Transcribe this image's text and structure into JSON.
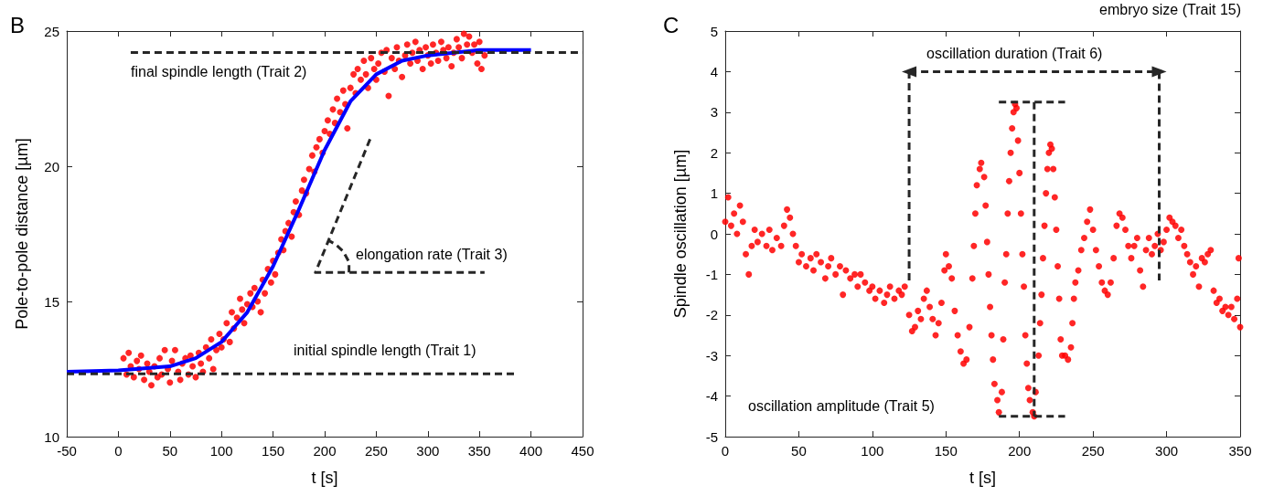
{
  "chart_data": [
    {
      "type": "scatter",
      "title": "B",
      "xlabel": "t [s]",
      "ylabel": "Pole-to-pole distance [µm]",
      "xlim": [
        -50,
        450
      ],
      "xticks": [
        -50,
        0,
        50,
        100,
        150,
        200,
        250,
        300,
        350,
        400,
        450
      ],
      "ylim": [
        10,
        25
      ],
      "yticks": [
        10,
        15,
        20,
        25
      ],
      "annotations": [
        "final spindle length (Trait 2)",
        "elongation rate (Trait 3)",
        "initial spindle length (Trait 1)"
      ],
      "series": [
        {
          "marker": "circle",
          "color": "#ff0000",
          "x": [
            5,
            8,
            10,
            12,
            15,
            18,
            20,
            22,
            25,
            28,
            30,
            32,
            35,
            38,
            40,
            42,
            45,
            48,
            50,
            52,
            55,
            58,
            60,
            62,
            65,
            68,
            70,
            72,
            75,
            78,
            80,
            82,
            85,
            88,
            90,
            92,
            95,
            98,
            100,
            102,
            105,
            108,
            110,
            112,
            115,
            118,
            120,
            122,
            125,
            128,
            130,
            132,
            135,
            138,
            140,
            142,
            145,
            148,
            150,
            152,
            155,
            158,
            160,
            162,
            165,
            168,
            170,
            172,
            175,
            178,
            180,
            182,
            185,
            188,
            190,
            192,
            195,
            198,
            200,
            203,
            205,
            208,
            210,
            212,
            215,
            218,
            220,
            222,
            225,
            228,
            230,
            232,
            235,
            238,
            240,
            242,
            245,
            248,
            250,
            252,
            255,
            258,
            260,
            262,
            265,
            268,
            270,
            272,
            275,
            278,
            280,
            283,
            285,
            288,
            290,
            292,
            295,
            298,
            300,
            303,
            305,
            308,
            310,
            313,
            315,
            318,
            320,
            323,
            325,
            328,
            330,
            333,
            335,
            338,
            340,
            343,
            345,
            348,
            350,
            352,
            355
          ],
          "values": [
            12.9,
            12.3,
            13.1,
            12.6,
            12.2,
            12.8,
            12.5,
            13.0,
            12.1,
            12.7,
            12.4,
            11.9,
            12.6,
            12.2,
            12.9,
            12.3,
            13.2,
            12.5,
            12.0,
            12.8,
            13.2,
            12.4,
            12.1,
            12.7,
            12.9,
            12.3,
            13.0,
            12.6,
            12.2,
            13.1,
            12.7,
            12.4,
            13.3,
            12.9,
            13.6,
            12.5,
            13.2,
            13.8,
            13.3,
            13.6,
            14.2,
            13.5,
            14.6,
            14.0,
            14.4,
            15.1,
            14.7,
            14.2,
            14.9,
            15.3,
            14.8,
            15.5,
            15.0,
            14.6,
            15.8,
            15.3,
            16.2,
            15.7,
            16.5,
            16.0,
            16.8,
            17.3,
            16.9,
            17.6,
            17.9,
            17.4,
            18.3,
            18.7,
            18.2,
            19.1,
            19.5,
            19.0,
            19.9,
            20.4,
            19.8,
            20.7,
            21.0,
            20.5,
            21.3,
            21.7,
            21.2,
            22.1,
            21.6,
            22.5,
            22.0,
            22.8,
            22.3,
            21.4,
            22.9,
            23.4,
            22.7,
            23.6,
            23.2,
            23.9,
            23.4,
            22.9,
            24.0,
            23.6,
            23.2,
            23.8,
            24.2,
            23.5,
            24.3,
            22.6,
            24.0,
            23.6,
            24.4,
            23.9,
            23.3,
            24.1,
            24.5,
            23.8,
            24.2,
            24.6,
            23.9,
            24.3,
            23.6,
            24.4,
            24.1,
            23.8,
            24.5,
            24.2,
            23.9,
            24.6,
            24.3,
            24.0,
            24.4,
            23.7,
            24.2,
            24.7,
            24.4,
            24.0,
            24.9,
            24.5,
            24.8,
            24.2,
            24.5,
            23.8,
            24.6,
            23.6,
            24.1
          ]
        },
        {
          "type": "line",
          "marker": "none",
          "line_style": "solid",
          "color": "#0000ff",
          "x": [
            -50,
            0,
            50,
            75,
            100,
            125,
            150,
            175,
            200,
            225,
            250,
            275,
            300,
            350,
            400
          ],
          "values": [
            12.4,
            12.45,
            12.6,
            12.9,
            13.5,
            14.6,
            16.3,
            18.4,
            20.6,
            22.4,
            23.4,
            23.9,
            24.1,
            24.3,
            24.3
          ]
        },
        {
          "type": "line",
          "marker": "none",
          "line_style": "dashed",
          "color": "#262626",
          "x": [
            12,
            450
          ],
          "values": [
            24.21,
            24.21
          ]
        },
        {
          "type": "line",
          "marker": "none",
          "line_style": "dashed",
          "color": "#262626",
          "x": [
            -50,
            386
          ],
          "values": [
            12.32,
            12.32
          ]
        },
        {
          "type": "line",
          "marker": "none",
          "line_style": "dashed",
          "color": "#262626",
          "x": [
            244,
            191,
            355
          ],
          "values": [
            21.0,
            16.07,
            16.07
          ]
        },
        {
          "type": "line",
          "marker": "none",
          "line_style": "dashed",
          "color": "#262626",
          "x": [
            223.6,
            223.6,
            218,
            211,
            204
          ],
          "values": [
            16.07,
            16.46,
            16.85,
            17.1,
            17.25
          ]
        }
      ]
    },
    {
      "type": "scatter",
      "title": "C",
      "xlabel": "t [s]",
      "ylabel": "Spindle oscillation [µm]",
      "xlim": [
        0,
        350
      ],
      "xticks": [
        0,
        50,
        100,
        150,
        200,
        250,
        300,
        350
      ],
      "ylim": [
        -5,
        5
      ],
      "yticks": [
        -5,
        -4,
        -3,
        -2,
        -1,
        0,
        1,
        2,
        3,
        4,
        5
      ],
      "annotations": [
        "oscillation duration (Trait 6)",
        "oscillation amplitude (Trait 5)",
        "embryo size (Trait 15)"
      ],
      "series": [
        {
          "marker": "circle",
          "color": "#ff0000",
          "x": [
            0,
            2,
            4,
            6,
            8,
            10,
            12,
            14,
            16,
            18,
            20,
            22,
            25,
            28,
            30,
            32,
            35,
            38,
            40,
            42,
            44,
            46,
            48,
            50,
            52,
            55,
            58,
            60,
            62,
            65,
            68,
            70,
            72,
            75,
            78,
            80,
            82,
            85,
            88,
            90,
            92,
            95,
            98,
            100,
            102,
            105,
            108,
            110,
            112,
            115,
            118,
            120,
            122,
            125,
            127,
            129,
            131,
            133,
            135,
            137,
            139,
            141,
            143,
            145,
            147,
            149,
            150,
            152,
            154,
            156,
            158,
            160,
            162,
            164,
            166,
            168,
            169,
            170,
            171,
            173,
            174,
            176,
            177,
            178,
            179,
            180,
            181,
            182,
            183,
            185,
            186,
            188,
            189,
            190,
            191,
            192,
            193,
            194,
            195,
            196,
            197,
            198,
            199,
            200,
            201,
            202,
            203,
            204,
            205,
            206,
            207,
            209,
            210,
            211,
            213,
            214,
            215,
            216,
            217,
            218,
            219,
            220,
            221,
            222,
            223,
            224,
            225,
            226,
            227,
            228,
            229,
            231,
            233,
            235,
            236,
            237,
            238,
            240,
            242,
            244,
            246,
            248,
            250,
            252,
            254,
            256,
            258,
            260,
            262,
            264,
            266,
            268,
            270,
            272,
            274,
            276,
            278,
            280,
            282,
            284,
            286,
            288,
            290,
            292,
            294,
            296,
            298,
            300,
            302,
            304,
            306,
            308,
            310,
            312,
            314,
            316,
            318,
            320,
            322,
            324,
            326,
            328,
            330,
            332,
            334,
            336,
            338,
            340,
            342,
            344,
            346,
            348,
            349,
            350
          ],
          "values": [
            0.3,
            0.9,
            0.2,
            0.5,
            0.0,
            0.7,
            0.3,
            -0.5,
            -1.0,
            -0.3,
            0.1,
            -0.2,
            0.0,
            -0.3,
            0.1,
            -0.4,
            -0.1,
            -0.3,
            0.2,
            0.6,
            0.4,
            0.0,
            -0.3,
            -0.7,
            -0.5,
            -0.8,
            -0.6,
            -0.9,
            -0.5,
            -0.7,
            -1.1,
            -0.8,
            -0.6,
            -1.0,
            -0.8,
            -1.5,
            -0.9,
            -1.1,
            -1.0,
            -1.3,
            -1.0,
            -1.2,
            -1.4,
            -1.3,
            -1.6,
            -1.4,
            -1.7,
            -1.5,
            -1.3,
            -1.6,
            -1.4,
            -1.5,
            -1.3,
            -2.0,
            -2.4,
            -2.3,
            -1.9,
            -2.1,
            -1.6,
            -1.4,
            -1.8,
            -2.1,
            -2.5,
            -2.2,
            -1.7,
            -0.9,
            -0.5,
            -0.8,
            -1.1,
            -1.9,
            -2.5,
            -2.9,
            -3.2,
            -3.1,
            -2.3,
            -1.1,
            -0.3,
            0.5,
            1.2,
            1.6,
            1.75,
            1.4,
            0.7,
            -0.2,
            -1.0,
            -1.8,
            -2.5,
            -3.1,
            -3.7,
            -4.1,
            -4.4,
            -3.9,
            -2.6,
            -1.2,
            -0.5,
            0.5,
            1.3,
            2.0,
            2.6,
            3.0,
            3.2,
            3.1,
            2.3,
            1.5,
            0.5,
            -0.5,
            -1.3,
            -2.5,
            -3.2,
            -3.8,
            -4.1,
            -4.4,
            -4.5,
            -3.9,
            -3.0,
            -2.2,
            -1.5,
            -0.6,
            0.2,
            1.0,
            1.6,
            2.0,
            2.2,
            2.1,
            1.6,
            0.9,
            0.1,
            -0.8,
            -1.6,
            -2.6,
            -3.0,
            -3.0,
            -3.1,
            -2.8,
            -2.2,
            -1.6,
            -1.2,
            -0.9,
            -0.4,
            -0.1,
            0.3,
            0.6,
            0.1,
            -0.4,
            -0.8,
            -1.2,
            -1.4,
            -1.5,
            -1.2,
            -0.6,
            0.2,
            0.5,
            0.4,
            0.1,
            -0.3,
            -0.6,
            -0.3,
            -0.1,
            -0.9,
            -1.3,
            -0.4,
            -0.1,
            -0.5,
            -0.3,
            0.0,
            -0.4,
            -0.2,
            0.1,
            0.4,
            0.3,
            0.2,
            -0.1,
            0.1,
            -0.3,
            -0.5,
            -0.7,
            -1.0,
            -0.8,
            -1.3,
            -0.6,
            -0.7,
            -0.5,
            -0.4,
            -1.4,
            -1.7,
            -1.6,
            -1.9,
            -1.8,
            -2.0,
            -1.8,
            -2.1,
            -1.6,
            -0.6,
            -2.3
          ]
        },
        {
          "type": "line",
          "line_style": "dashed",
          "color": "#262626",
          "x": [
            125,
            125
          ],
          "values": [
            -1.15,
            4
          ]
        },
        {
          "type": "line",
          "marker": "triangle",
          "line_style": "dashed",
          "color": "#262626",
          "x": [
            125,
            295
          ],
          "values": [
            4,
            4
          ]
        },
        {
          "type": "line",
          "marker": "none",
          "line_style": "dashed",
          "color": "#262626",
          "x": [
            295,
            295
          ],
          "values": [
            4,
            -1.15
          ]
        },
        {
          "type": "line",
          "marker": "none",
          "line_style": "dashed",
          "color": "#262626",
          "x": [
            186,
            231
          ],
          "values": [
            3.25,
            3.25
          ]
        },
        {
          "type": "line",
          "marker": "none",
          "line_style": "dashed",
          "color": "#262626",
          "x": [
            186,
            231
          ],
          "values": [
            -4.5,
            -4.5
          ]
        },
        {
          "type": "line",
          "marker": "none",
          "line_style": "dashed",
          "color": "#262626",
          "x": [
            210,
            210
          ],
          "values": [
            3.25,
            -4.5
          ]
        }
      ]
    }
  ]
}
